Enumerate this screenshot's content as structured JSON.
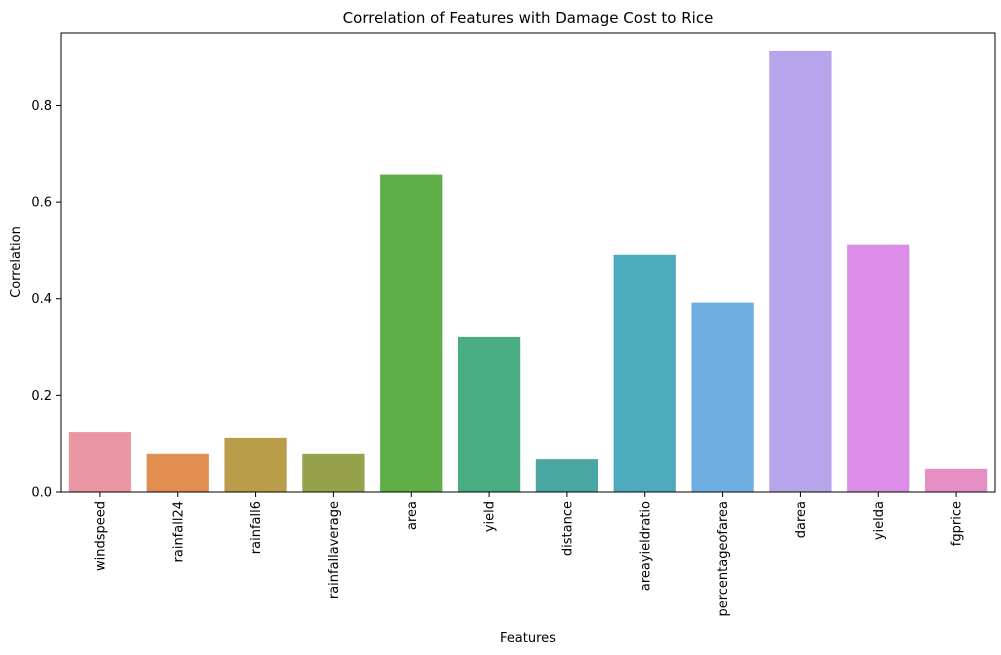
{
  "chart_data": {
    "type": "bar",
    "title": "Correlation of Features with Damage Cost to Rice",
    "xlabel": "Features",
    "ylabel": "Correlation",
    "categories": [
      "windspeed",
      "rainfall24",
      "rainfall6",
      "rainfallaverage",
      "area",
      "yield",
      "distance",
      "areayieldratio",
      "percentageofarea",
      "darea",
      "yielda",
      "fgprice"
    ],
    "values": [
      0.124,
      0.079,
      0.112,
      0.079,
      0.657,
      0.321,
      0.068,
      0.491,
      0.392,
      0.913,
      0.512,
      0.048
    ],
    "colors": [
      "#ea96a3",
      "#e08e4f",
      "#b99d4b",
      "#96a24b",
      "#5fae47",
      "#4aad84",
      "#4ba7a2",
      "#4eabbe",
      "#6eade0",
      "#b6a5ea",
      "#dc8de7",
      "#e68fc4"
    ],
    "ylim": [
      0,
      0.95
    ],
    "yticks": [
      0.0,
      0.2,
      0.4,
      0.6,
      0.8
    ],
    "ytick_labels": [
      "0.0",
      "0.2",
      "0.4",
      "0.6",
      "0.8"
    ],
    "grid": false,
    "legend": "none"
  }
}
